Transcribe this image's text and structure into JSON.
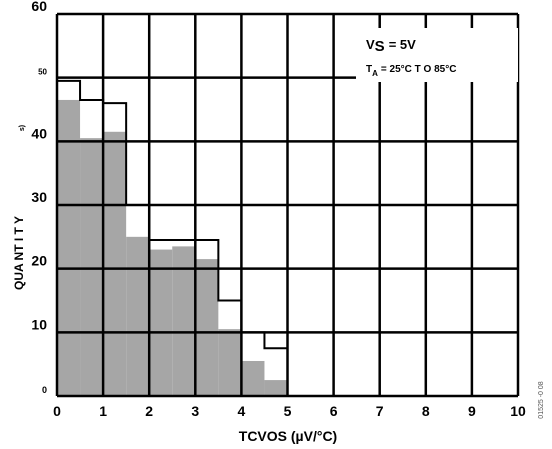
{
  "chart_data": {
    "type": "bar",
    "title": "",
    "xlabel": "TCVOS (µV/°C)",
    "ylabel": "QUA NT I T Y",
    "ylabel_suffix": "s)",
    "xlim": [
      0,
      10
    ],
    "ylim": [
      0,
      60
    ],
    "x_ticks": [
      "0",
      "1",
      "2",
      "3",
      "4",
      "5",
      "6",
      "7",
      "8",
      "9",
      "10"
    ],
    "y_ticks": [
      "0",
      "10",
      "20",
      "30",
      "40",
      "50",
      "60"
    ],
    "grid": true,
    "annotations": {
      "vs_prefix": "V",
      "vs_sub": "S",
      "vs_value": "= 5V",
      "ta_prefix": "T",
      "ta_sub": "A",
      "ta_value": "= 25°C T O 85°C"
    },
    "figure_id": "01525 -0 08",
    "series": [
      {
        "style": "filled",
        "bins": [
          {
            "x0": 0.0,
            "x1": 0.5,
            "y": 46.5
          },
          {
            "x0": 0.5,
            "x1": 1.0,
            "y": 40.5
          },
          {
            "x0": 1.0,
            "x1": 1.5,
            "y": 41.5
          },
          {
            "x0": 1.5,
            "x1": 2.0,
            "y": 25.0
          },
          {
            "x0": 2.0,
            "x1": 2.5,
            "y": 23.0
          },
          {
            "x0": 2.5,
            "x1": 3.0,
            "y": 23.5
          },
          {
            "x0": 3.0,
            "x1": 3.5,
            "y": 21.5
          },
          {
            "x0": 3.5,
            "x1": 4.0,
            "y": 10.5
          },
          {
            "x0": 4.0,
            "x1": 4.5,
            "y": 5.5
          },
          {
            "x0": 4.5,
            "x1": 5.0,
            "y": 2.5
          }
        ]
      },
      {
        "style": "outline",
        "bins": [
          {
            "x0": 0.0,
            "x1": 0.5,
            "y": 49.5
          },
          {
            "x0": 0.5,
            "x1": 1.0,
            "y": 46.5
          },
          {
            "x0": 1.0,
            "x1": 1.5,
            "y": 46.0
          },
          {
            "x0": 1.5,
            "x1": 2.0,
            "y": 30.0
          },
          {
            "x0": 2.0,
            "x1": 2.5,
            "y": 24.5
          },
          {
            "x0": 2.5,
            "x1": 3.0,
            "y": 24.5
          },
          {
            "x0": 3.0,
            "x1": 3.5,
            "y": 24.5
          },
          {
            "x0": 3.5,
            "x1": 4.0,
            "y": 15.0
          },
          {
            "x0": 4.0,
            "x1": 4.5,
            "y": 10.0
          },
          {
            "x0": 4.5,
            "x1": 5.0,
            "y": 7.5
          }
        ]
      }
    ],
    "colors": {
      "bar_fill": "#a6a6a6",
      "grid": "#000000",
      "background": "#ffffff"
    }
  }
}
